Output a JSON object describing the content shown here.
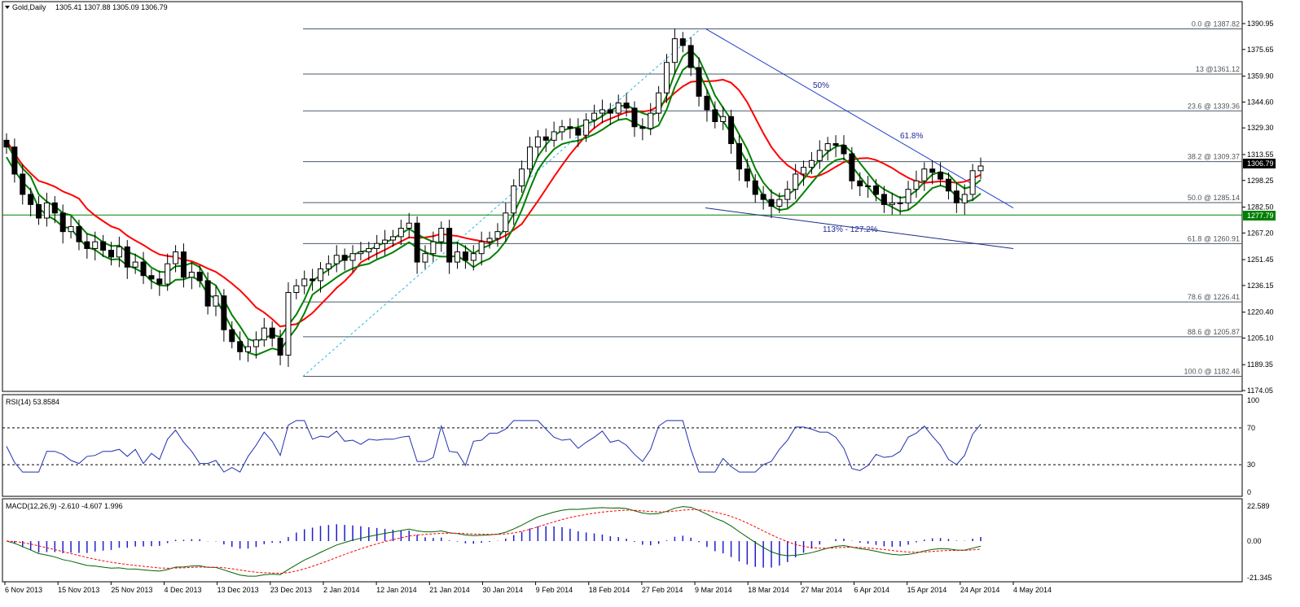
{
  "main": {
    "symbol_label": "Gold,Daily",
    "ohlc": "1305.41 1307.88 1305.09 1306.79",
    "price_badge": "1306.79",
    "support_badge": "1277.79",
    "trendline_upper_label": "50%",
    "trendline_upper_label2": "61.8%",
    "trendline_lower_label": "113% - 127.2%"
  },
  "rsi": {
    "label": "RSI(14) 53.8584",
    "ticks": [
      "100",
      "70",
      "30",
      "0"
    ]
  },
  "macd": {
    "label": "MACD(12,26,9) -2.610 -4.607 1.996",
    "ticks": [
      "22.589",
      "0.00",
      "-21.345"
    ]
  },
  "colors": {
    "bull": "#ffffff",
    "bear": "#000000",
    "ma_fast": "#008000",
    "ma_slow": "#ff0000",
    "fib": "#4a5a6a",
    "trend": "#1e3ccc",
    "rsi": "#1f2fb0",
    "hist": "#1e1ecc",
    "signal": "#ff0000"
  },
  "chart_data": {
    "type": "candlestick",
    "title": "Gold,Daily",
    "y_axis_ticks": [
      "1390.95",
      "1375.65",
      "1359.90",
      "1344.60",
      "1329.30",
      "1313.55",
      "1298.25",
      "1282.50",
      "1267.20",
      "1251.45",
      "1236.15",
      "1220.40",
      "1205.10",
      "1189.35",
      "1174.05"
    ],
    "x_axis_ticks": [
      "6 Nov 2013",
      "15 Nov 2013",
      "25 Nov 2013",
      "4 Dec 2013",
      "13 Dec 2013",
      "23 Dec 2013",
      "2 Jan 2014",
      "12 Jan 2014",
      "21 Jan 2014",
      "30 Jan 2014",
      "9 Feb 2014",
      "18 Feb 2014",
      "27 Feb 2014",
      "9 Mar 2014",
      "18 Mar 2014",
      "27 Mar 2014",
      "6 Apr 2014",
      "15 Apr 2014",
      "24 Apr 2014",
      "4 May 2014"
    ],
    "fib_levels": [
      {
        "label": "0.0 @ 1387.82",
        "price": 1387.82
      },
      {
        "label": "13 @1361.12",
        "price": 1361.12
      },
      {
        "label": "23.6 @ 1339.36",
        "price": 1339.36
      },
      {
        "label": "38.2 @ 1309.37",
        "price": 1309.37
      },
      {
        "label": "50.0 @ 1285.14",
        "price": 1285.14
      },
      {
        "label": "61.8 @ 1260.91",
        "price": 1260.91
      },
      {
        "label": "78.6 @ 1226.41",
        "price": 1226.41
      },
      {
        "label": "88.6 @ 1205.87",
        "price": 1205.87
      },
      {
        "label": "100.0 @ 1182.46",
        "price": 1182.46
      }
    ],
    "last_price": 1306.79,
    "support": 1277.79,
    "closes": [
      1318,
      1302,
      1290,
      1284,
      1276,
      1285,
      1279,
      1268,
      1271,
      1262,
      1258,
      1262,
      1257,
      1253,
      1259,
      1247,
      1250,
      1242,
      1240,
      1237,
      1249,
      1256,
      1241,
      1244,
      1239,
      1224,
      1230,
      1210,
      1203,
      1197,
      1200,
      1204,
      1211,
      1205,
      1195,
      1232,
      1236,
      1240,
      1239,
      1246,
      1249,
      1254,
      1251,
      1255,
      1256,
      1258,
      1261,
      1263,
      1265,
      1270,
      1273,
      1250,
      1255,
      1262,
      1270,
      1250,
      1256,
      1251,
      1255,
      1262,
      1264,
      1268,
      1279,
      1295,
      1305,
      1318,
      1324,
      1322,
      1327,
      1330,
      1329,
      1325,
      1334,
      1338,
      1340,
      1338,
      1344,
      1341,
      1330,
      1329,
      1338,
      1350,
      1368,
      1382,
      1378,
      1365,
      1348,
      1340,
      1333,
      1336,
      1320,
      1305,
      1298,
      1290,
      1287,
      1283,
      1287,
      1293,
      1302,
      1306,
      1310,
      1316,
      1320,
      1319,
      1314,
      1298,
      1295,
      1295,
      1290,
      1284,
      1285,
      1285,
      1293,
      1298,
      1305,
      1303,
      1299,
      1292,
      1285,
      1290,
      1304,
      1306.79
    ]
  }
}
